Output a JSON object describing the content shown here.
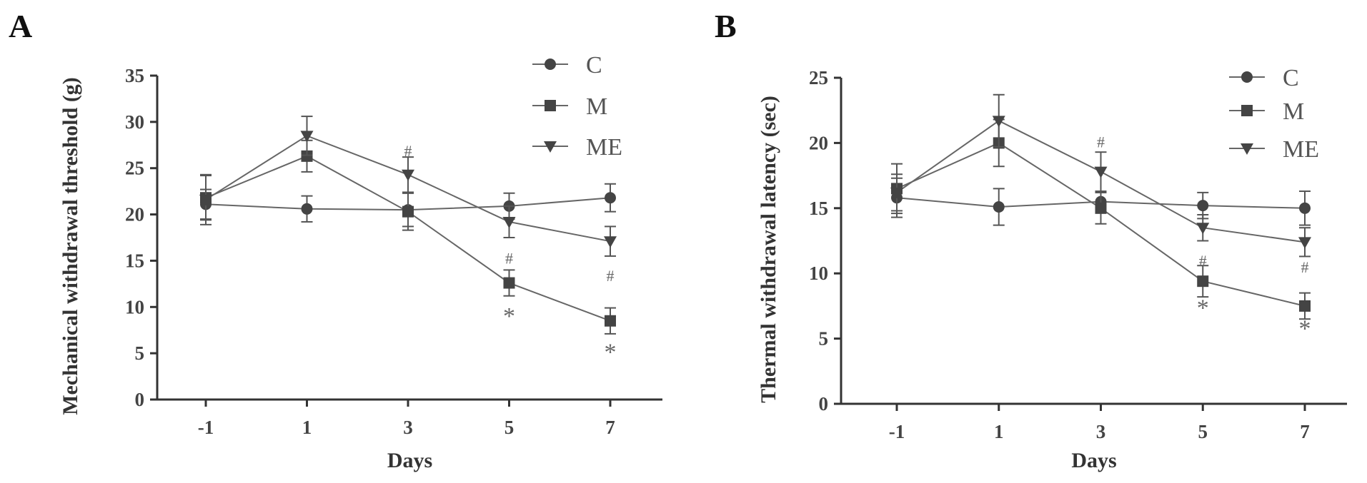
{
  "chart_data": [
    {
      "type": "line",
      "panel": "A",
      "xlabel": "Days",
      "ylabel": "Mechanical withdrawal threshold (g)",
      "x": [
        -1,
        1,
        3,
        5,
        7
      ],
      "xticks": [
        "-1",
        "1",
        "3",
        "5",
        "7"
      ],
      "ylim": [
        0,
        35
      ],
      "yticks": [
        0,
        5,
        10,
        15,
        20,
        25,
        30,
        35
      ],
      "legend_position": "top-right",
      "grid": false,
      "series": [
        {
          "name": "C",
          "marker": "circle",
          "values": [
            21.1,
            20.6,
            20.5,
            20.9,
            21.8
          ],
          "errors": [
            1.6,
            1.4,
            1.8,
            1.4,
            1.5
          ]
        },
        {
          "name": "M",
          "marker": "square",
          "values": [
            21.8,
            26.3,
            20.3,
            12.6,
            8.5
          ],
          "errors": [
            2.4,
            1.7,
            2.0,
            1.4,
            1.4
          ]
        },
        {
          "name": "ME",
          "marker": "triangle-down",
          "values": [
            21.6,
            28.5,
            24.3,
            19.2,
            17.1
          ],
          "errors": [
            2.7,
            2.1,
            1.9,
            1.7,
            1.6
          ]
        }
      ],
      "annotations": [
        {
          "text": "#",
          "x": 3,
          "y": 26.9
        },
        {
          "text": "#",
          "x": 5,
          "y": 15.3
        },
        {
          "text": "*",
          "x": 5,
          "y": 8.8
        },
        {
          "text": "#",
          "x": 7,
          "y": 13.4
        },
        {
          "text": "*",
          "x": 7,
          "y": 4.9
        }
      ]
    },
    {
      "type": "line",
      "panel": "B",
      "xlabel": "Days",
      "ylabel": "Thermal withdrawal latency (sec)",
      "x": [
        -1,
        1,
        3,
        5,
        7
      ],
      "xticks": [
        "-1",
        "1",
        "3",
        "5",
        "7"
      ],
      "ylim": [
        0,
        25
      ],
      "yticks": [
        0,
        5,
        10,
        15,
        20,
        25
      ],
      "legend_position": "top-right",
      "grid": false,
      "series": [
        {
          "name": "C",
          "marker": "circle",
          "values": [
            15.8,
            15.1,
            15.5,
            15.2,
            15.0
          ],
          "errors": [
            1.5,
            1.4,
            0.7,
            1.0,
            1.3
          ]
        },
        {
          "name": "M",
          "marker": "square",
          "values": [
            16.5,
            20.0,
            15.0,
            9.4,
            7.5
          ],
          "errors": [
            1.9,
            1.8,
            1.2,
            1.2,
            1.0
          ]
        },
        {
          "name": "ME",
          "marker": "triangle-down",
          "values": [
            16.2,
            21.7,
            17.8,
            13.5,
            12.4
          ],
          "errors": [
            1.4,
            2.0,
            1.5,
            1.0,
            1.1
          ]
        }
      ],
      "annotations": [
        {
          "text": "#",
          "x": 3,
          "y": 20.1
        },
        {
          "text": "#",
          "x": 5,
          "y": 11.0
        },
        {
          "text": "*",
          "x": 5,
          "y": 7.2
        },
        {
          "text": "#",
          "x": 7,
          "y": 10.5
        },
        {
          "text": "*",
          "x": 7,
          "y": 5.6
        }
      ]
    }
  ]
}
